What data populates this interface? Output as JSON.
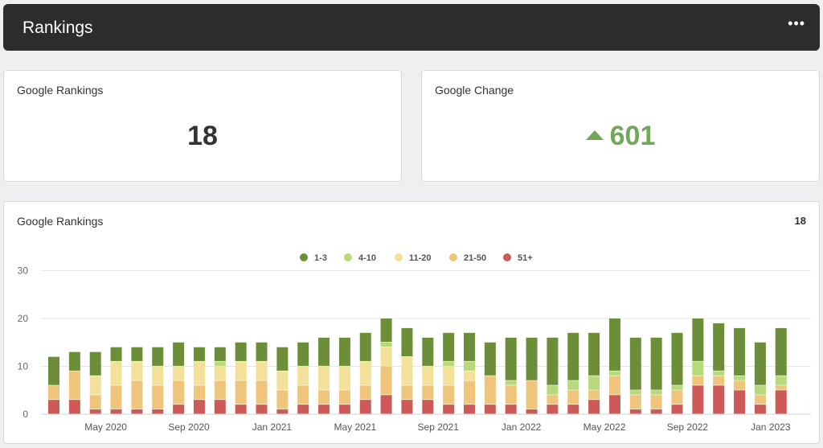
{
  "header": {
    "title": "Rankings",
    "menu_icon": "more-horizontal-icon",
    "menu_label": "•••"
  },
  "cards": {
    "rankings": {
      "title": "Google Rankings",
      "value": "18"
    },
    "change": {
      "title": "Google Change",
      "value": "601",
      "direction_icon": "triangle-up-icon"
    }
  },
  "chart_panel": {
    "title": "Google Rankings",
    "total": "18"
  },
  "colors": {
    "1-3": "#6d8e38",
    "4-10": "#b7d97a",
    "11-20": "#f3e199",
    "21-50": "#efc47b",
    "51+": "#cd5a59"
  },
  "chart_data": {
    "type": "bar",
    "stacked": true,
    "title": "Google Rankings",
    "legend": {
      "position": "top-center",
      "entries": [
        "1-3",
        "4-10",
        "11-20",
        "21-50",
        "51+"
      ]
    },
    "ylim": [
      0,
      30
    ],
    "yticks": [
      0,
      10,
      20,
      30
    ],
    "grid": true,
    "x_tick_labels": [
      "May 2020",
      "Sep 2020",
      "Jan 2021",
      "May 2021",
      "Sep 2021",
      "Jan 2022",
      "May 2022",
      "Sep 2022",
      "Jan 2023"
    ],
    "x_tick_bar_index": [
      2,
      6,
      10,
      14,
      18,
      22,
      26,
      30,
      34
    ],
    "series": [
      {
        "name": "51+",
        "values": [
          3,
          3,
          1,
          1,
          1,
          1,
          2,
          3,
          3,
          2,
          2,
          1,
          2,
          2,
          2,
          3,
          4,
          3,
          3,
          2,
          2,
          2,
          2,
          1,
          2,
          2,
          3,
          4,
          1,
          1,
          2,
          6,
          6,
          5,
          2,
          5
        ]
      },
      {
        "name": "21-50",
        "values": [
          3,
          6,
          3,
          5,
          6,
          5,
          5,
          3,
          4,
          5,
          5,
          4,
          4,
          3,
          3,
          3,
          6,
          3,
          3,
          4,
          5,
          6,
          4,
          6,
          2,
          3,
          2,
          4,
          3,
          3,
          3,
          2,
          2,
          2,
          2,
          1
        ]
      },
      {
        "name": "11-20",
        "values": [
          0,
          0,
          4,
          5,
          4,
          4,
          3,
          5,
          3,
          4,
          4,
          4,
          4,
          5,
          5,
          5,
          4,
          6,
          4,
          4,
          2,
          0,
          0,
          0,
          0,
          0,
          0,
          0,
          0,
          0,
          0,
          0,
          0,
          0,
          0,
          0
        ]
      },
      {
        "name": "4-10",
        "values": [
          0,
          0,
          0,
          0,
          0,
          0,
          0,
          0,
          1,
          0,
          0,
          0,
          0,
          0,
          0,
          0,
          1,
          0,
          0,
          1,
          2,
          0,
          1,
          0,
          2,
          2,
          3,
          1,
          1,
          1,
          1,
          3,
          1,
          1,
          2,
          2
        ]
      },
      {
        "name": "1-3",
        "values": [
          6,
          4,
          5,
          3,
          3,
          4,
          5,
          3,
          3,
          4,
          4,
          5,
          5,
          6,
          6,
          6,
          5,
          6,
          6,
          6,
          6,
          7,
          9,
          9,
          10,
          10,
          9,
          11,
          11,
          11,
          11,
          9,
          10,
          10,
          9,
          10
        ]
      }
    ]
  }
}
